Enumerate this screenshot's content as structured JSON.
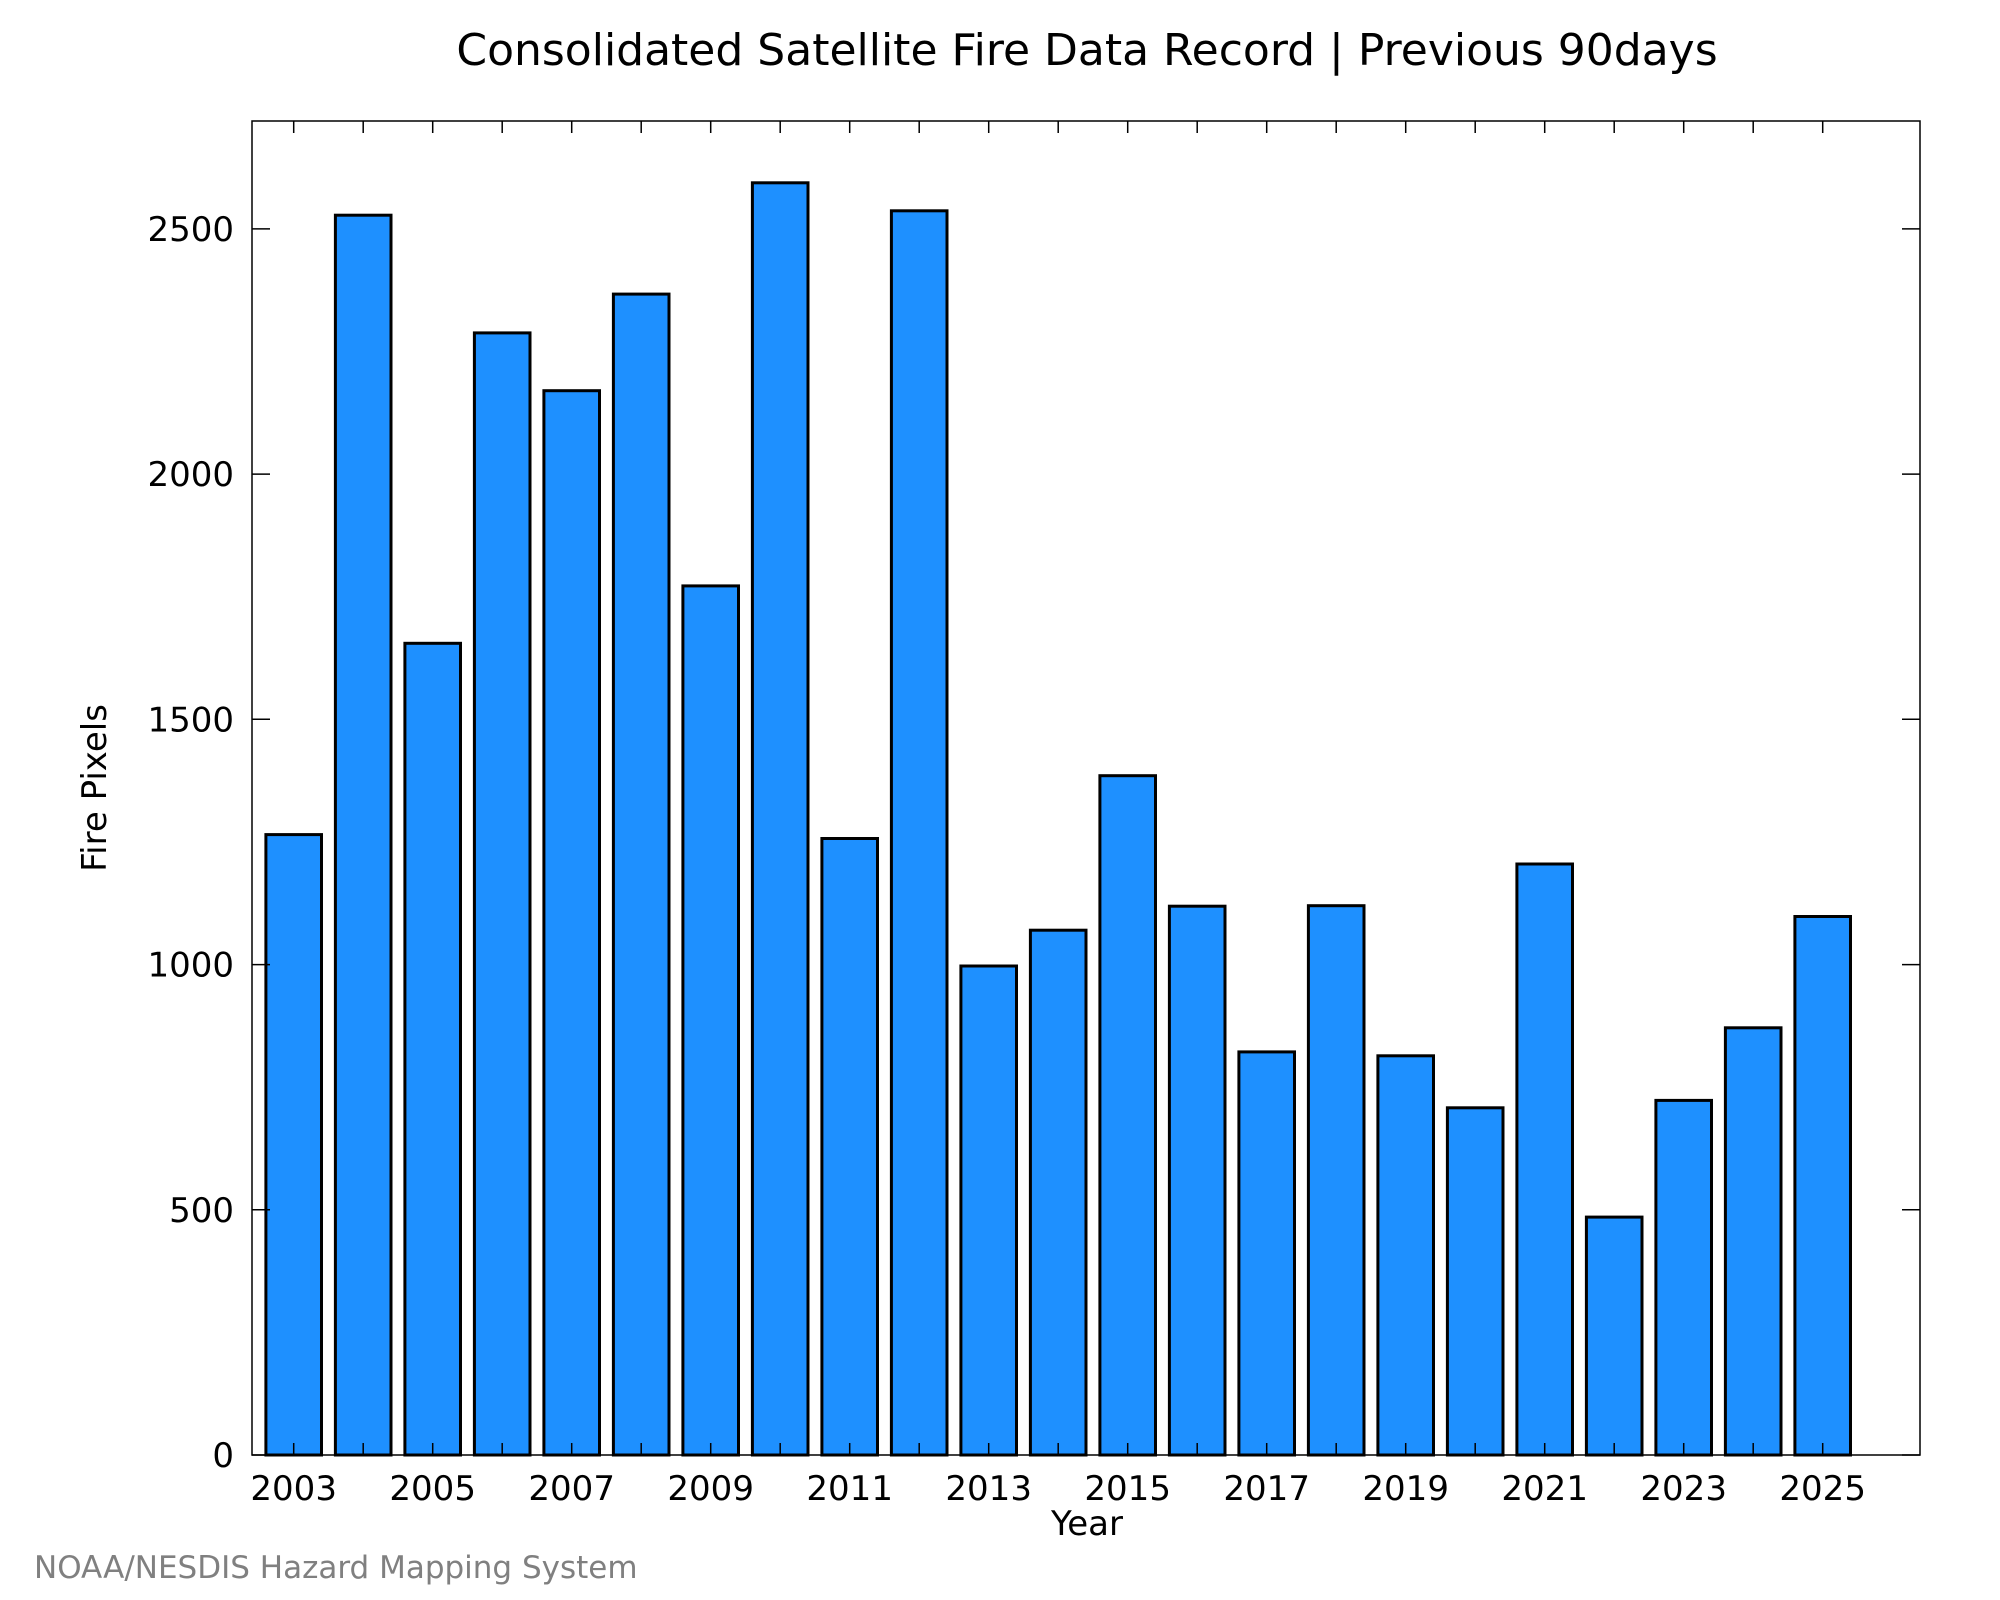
{
  "chart_data": {
    "type": "bar",
    "title": "Consolidated Satellite Fire Data Record | Previous 90days",
    "xlabel": "Year",
    "ylabel": "Fire Pixels",
    "credit": "NOAA/NESDIS Hazard Mapping System",
    "categories": [
      "2003",
      "2004",
      "2005",
      "2006",
      "2007",
      "2008",
      "2009",
      "2010",
      "2011",
      "2012",
      "2013",
      "2014",
      "2015",
      "2016",
      "2017",
      "2018",
      "2019",
      "2020",
      "2021",
      "2022",
      "2023",
      "2024",
      "2025"
    ],
    "values": [
      1265,
      2528,
      1655,
      2288,
      2170,
      2367,
      1772,
      2594,
      1257,
      2537,
      997,
      1070,
      1385,
      1119,
      822,
      1120,
      814,
      708,
      1205,
      485,
      723,
      871,
      1098
    ],
    "x_tick_labels": [
      "2003",
      "2005",
      "2007",
      "2009",
      "2011",
      "2013",
      "2015",
      "2017",
      "2019",
      "2021",
      "2023",
      "2025"
    ],
    "y_ticks": [
      0,
      500,
      1000,
      1500,
      2000,
      2500
    ],
    "ylim": [
      0,
      2720
    ],
    "xlim": [
      2002.4,
      2026.4
    ],
    "bar_color": "#1e90ff",
    "grid": false,
    "legend": "none"
  }
}
